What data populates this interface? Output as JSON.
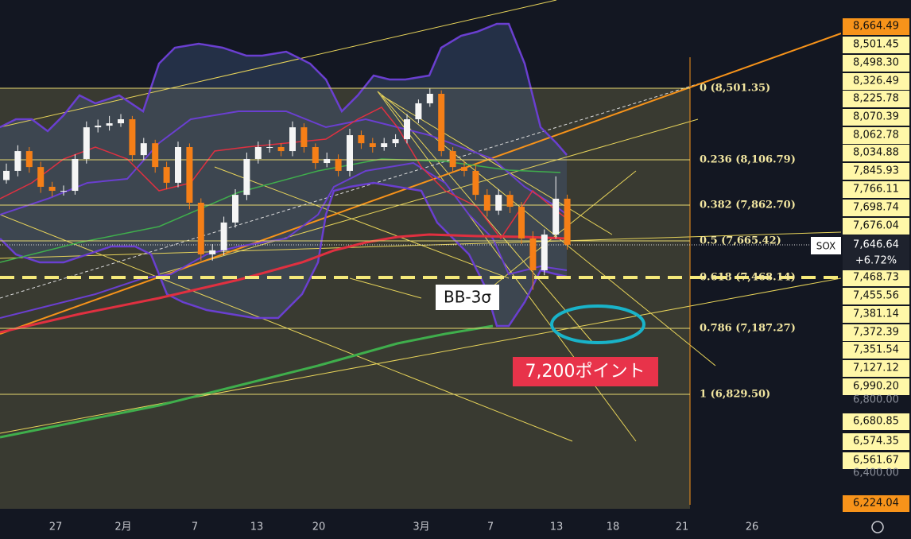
{
  "symbol": "SOX",
  "last_price": "7,646.64",
  "change": "+6.72%",
  "candles": {
    "up_color": "#f5f5f5",
    "down_color": "#f57f17",
    "ohlc": [
      [
        8000,
        8090,
        7980,
        8050
      ],
      [
        8050,
        8190,
        8020,
        8158
      ],
      [
        8158,
        8180,
        8040,
        8071
      ],
      [
        8071,
        8100,
        7930,
        7963
      ],
      [
        7963,
        7990,
        7910,
        7941
      ],
      [
        7941,
        7970,
        7915,
        7941
      ],
      [
        7941,
        8140,
        7920,
        8115
      ],
      [
        8115,
        8320,
        8090,
        8288
      ],
      [
        8288,
        8330,
        8260,
        8297
      ],
      [
        8297,
        8350,
        8270,
        8310
      ],
      [
        8310,
        8360,
        8290,
        8332
      ],
      [
        8332,
        8350,
        8100,
        8136
      ],
      [
        8136,
        8230,
        8110,
        8201
      ],
      [
        8201,
        8220,
        8040,
        8071
      ],
      [
        8071,
        8100,
        7950,
        7985
      ],
      [
        7985,
        8210,
        7960,
        8180
      ],
      [
        8180,
        8200,
        7840,
        7876
      ],
      [
        7876,
        7900,
        7560,
        7594
      ],
      [
        7594,
        7650,
        7560,
        7616
      ],
      [
        7616,
        7800,
        7590,
        7768
      ],
      [
        7768,
        7950,
        7740,
        7919
      ],
      [
        7919,
        8150,
        7890,
        8115
      ],
      [
        8115,
        8210,
        8090,
        8180
      ],
      [
        8180,
        8220,
        8150,
        8180
      ],
      [
        8180,
        8200,
        8130,
        8158
      ],
      [
        8158,
        8320,
        8130,
        8288
      ],
      [
        8288,
        8310,
        8150,
        8180
      ],
      [
        8180,
        8200,
        8060,
        8093
      ],
      [
        8093,
        8150,
        8070,
        8115
      ],
      [
        8115,
        8140,
        8020,
        8050
      ],
      [
        8050,
        8280,
        8020,
        8245
      ],
      [
        8245,
        8270,
        8170,
        8201
      ],
      [
        8201,
        8230,
        8150,
        8180
      ],
      [
        8180,
        8230,
        8160,
        8201
      ],
      [
        8201,
        8250,
        8180,
        8223
      ],
      [
        8223,
        8360,
        8200,
        8332
      ],
      [
        8332,
        8440,
        8310,
        8419
      ],
      [
        8419,
        8500,
        8400,
        8471
      ],
      [
        8471,
        8490,
        8130,
        8158
      ],
      [
        8158,
        8180,
        8040,
        8071
      ],
      [
        8071,
        8100,
        8020,
        8050
      ],
      [
        8050,
        8080,
        7890,
        7919
      ],
      [
        7919,
        7950,
        7800,
        7833
      ],
      [
        7833,
        7950,
        7810,
        7919
      ],
      [
        7919,
        7940,
        7820,
        7854
      ],
      [
        7854,
        7880,
        7650,
        7681
      ],
      [
        7681,
        7720,
        7400,
        7507
      ],
      [
        7507,
        7730,
        7480,
        7702
      ],
      [
        7702,
        8020,
        7680,
        7898
      ],
      [
        7898,
        7920,
        7620,
        7646.64
      ]
    ]
  },
  "fib_levels": [
    "0 (8,501.35)",
    "0.236 (8,106.79)",
    "0.382 (7,862.70)",
    "0.5 (7,665.42)",
    "0.618 (7,468.14)",
    "0.786 (7,187.27)",
    "1 (6,829.50)"
  ],
  "price_axis": [
    "8,664.49",
    "8,501.45",
    "8,498.30",
    "8,326.49",
    "8,225.78",
    "8,070.39",
    "8,062.78",
    "8,034.88",
    "7,845.93",
    "7,766.11",
    "7,698.74",
    "7,676.04",
    "7,468.73",
    "7,455.56",
    "7,381.14",
    "7,372.39",
    "7,351.54",
    "7,127.12",
    "6,990.20",
    "6,800.00",
    "6,680.85",
    "6,574.35",
    "6,561.67",
    "6,400.00",
    "6,224.04"
  ],
  "date_axis": [
    "27",
    "2月",
    "7",
    "13",
    "20",
    "3月",
    "7",
    "13",
    "18",
    "21",
    "26"
  ],
  "annotations": [
    "BB-3σ",
    "7,200ポイント"
  ]
}
